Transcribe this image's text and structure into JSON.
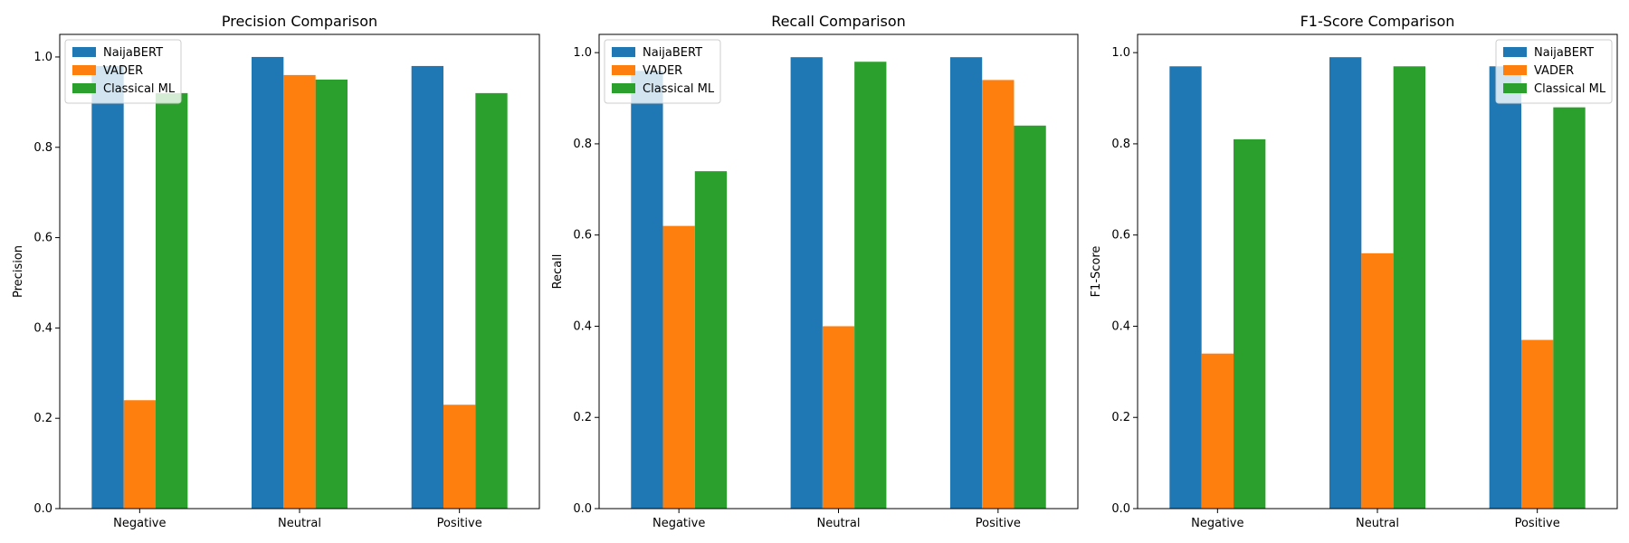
{
  "chart_data": [
    {
      "type": "bar",
      "title": "Precision Comparison",
      "xlabel": "",
      "ylabel": "Precision",
      "categories": [
        "Negative",
        "Neutral",
        "Positive"
      ],
      "ylim": [
        0,
        1.05
      ],
      "yticks": [
        "0.0",
        "0.2",
        "0.4",
        "0.6",
        "0.8",
        "1.0"
      ],
      "legend_position": "top-left",
      "series": [
        {
          "name": "NaijaBERT",
          "color": "#1f77b4",
          "values": [
            0.98,
            1.0,
            0.98
          ]
        },
        {
          "name": "VADER",
          "color": "#ff7f0e",
          "values": [
            0.24,
            0.96,
            0.23
          ]
        },
        {
          "name": "Classical ML",
          "color": "#2ca02c",
          "values": [
            0.92,
            0.95,
            0.92
          ]
        }
      ]
    },
    {
      "type": "bar",
      "title": "Recall Comparison",
      "xlabel": "",
      "ylabel": "Recall",
      "categories": [
        "Negative",
        "Neutral",
        "Positive"
      ],
      "ylim": [
        0,
        1.04
      ],
      "yticks": [
        "0.0",
        "0.2",
        "0.4",
        "0.6",
        "0.8",
        "1.0"
      ],
      "legend_position": "top-left",
      "series": [
        {
          "name": "NaijaBERT",
          "color": "#1f77b4",
          "values": [
            0.96,
            0.99,
            0.99
          ]
        },
        {
          "name": "VADER",
          "color": "#ff7f0e",
          "values": [
            0.62,
            0.4,
            0.94
          ]
        },
        {
          "name": "Classical ML",
          "color": "#2ca02c",
          "values": [
            0.74,
            0.98,
            0.84
          ]
        }
      ]
    },
    {
      "type": "bar",
      "title": "F1-Score Comparison",
      "xlabel": "",
      "ylabel": "F1-Score",
      "categories": [
        "Negative",
        "Neutral",
        "Positive"
      ],
      "ylim": [
        0,
        1.04
      ],
      "yticks": [
        "0.0",
        "0.2",
        "0.4",
        "0.6",
        "0.8",
        "1.0"
      ],
      "legend_position": "top-right",
      "series": [
        {
          "name": "NaijaBERT",
          "color": "#1f77b4",
          "values": [
            0.97,
            0.99,
            0.97
          ]
        },
        {
          "name": "VADER",
          "color": "#ff7f0e",
          "values": [
            0.34,
            0.56,
            0.37
          ]
        },
        {
          "name": "Classical ML",
          "color": "#2ca02c",
          "values": [
            0.81,
            0.97,
            0.88
          ]
        }
      ]
    }
  ]
}
